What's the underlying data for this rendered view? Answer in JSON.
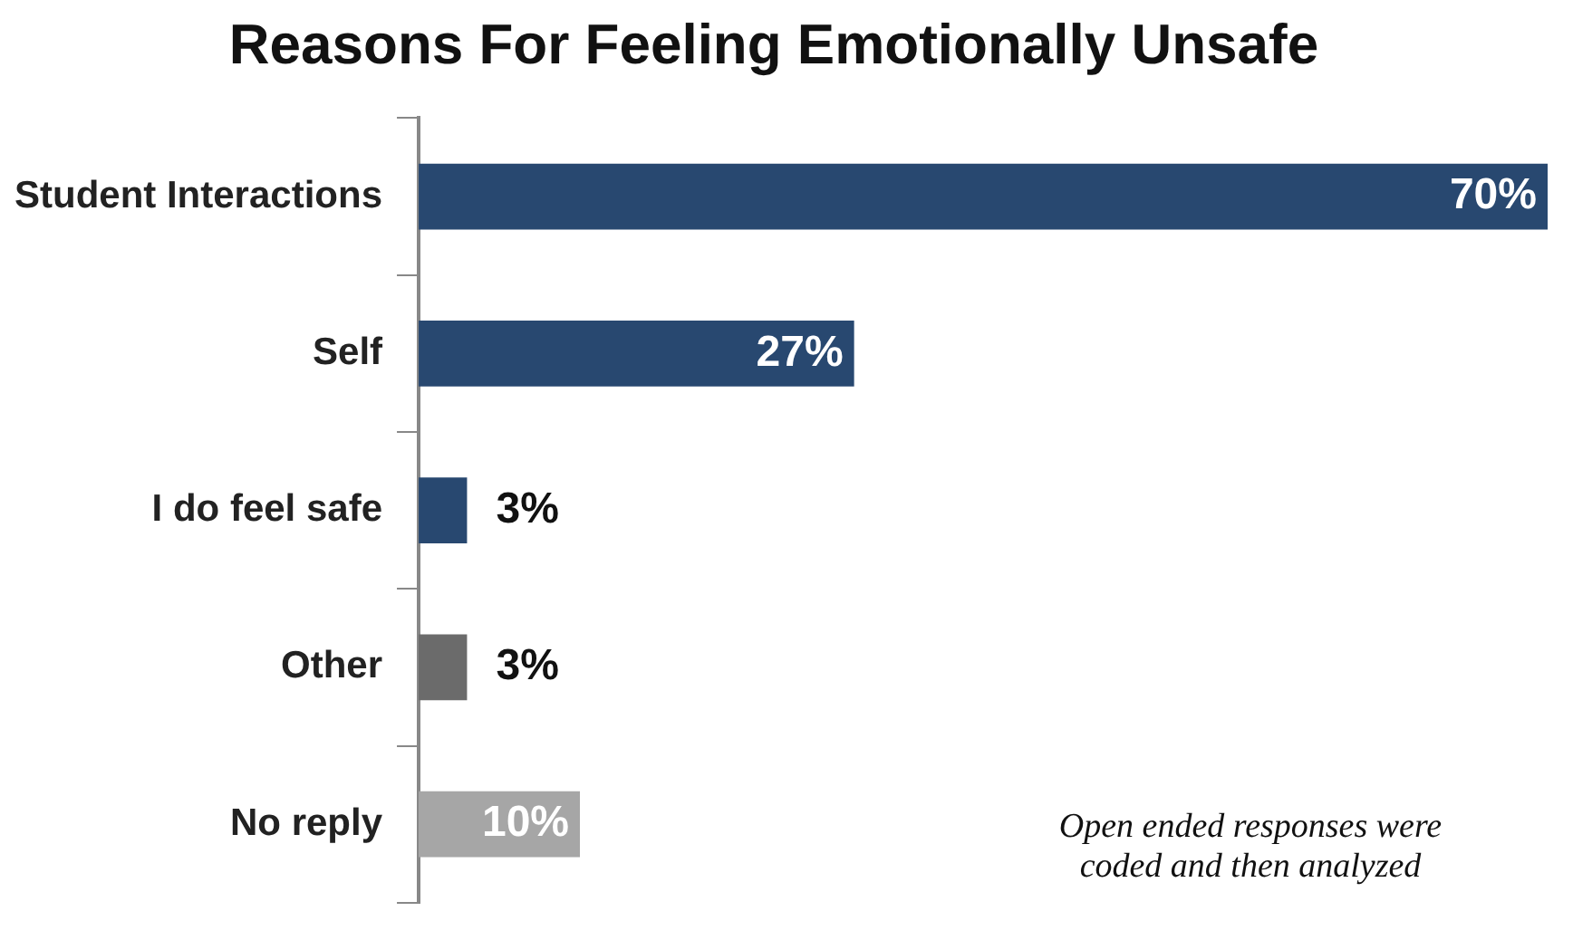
{
  "chart_data": {
    "type": "bar",
    "orientation": "horizontal",
    "title": "Reasons For Feeling Emotionally Unsafe",
    "categories": [
      "Student Interactions",
      "Self",
      "I do feel safe",
      "Other",
      "No reply"
    ],
    "values": [
      70,
      27,
      3,
      3,
      10
    ],
    "colors": [
      "#284870",
      "#284870",
      "#284870",
      "#6b6b6b",
      "#a6a6a6"
    ],
    "value_labels": [
      "70%",
      "27%",
      "3%",
      "3%",
      "10%"
    ],
    "xlim": [
      0,
      70
    ],
    "tick_labels": "y",
    "annotations": [
      "Open ended responses were coded and then analyzed"
    ]
  }
}
